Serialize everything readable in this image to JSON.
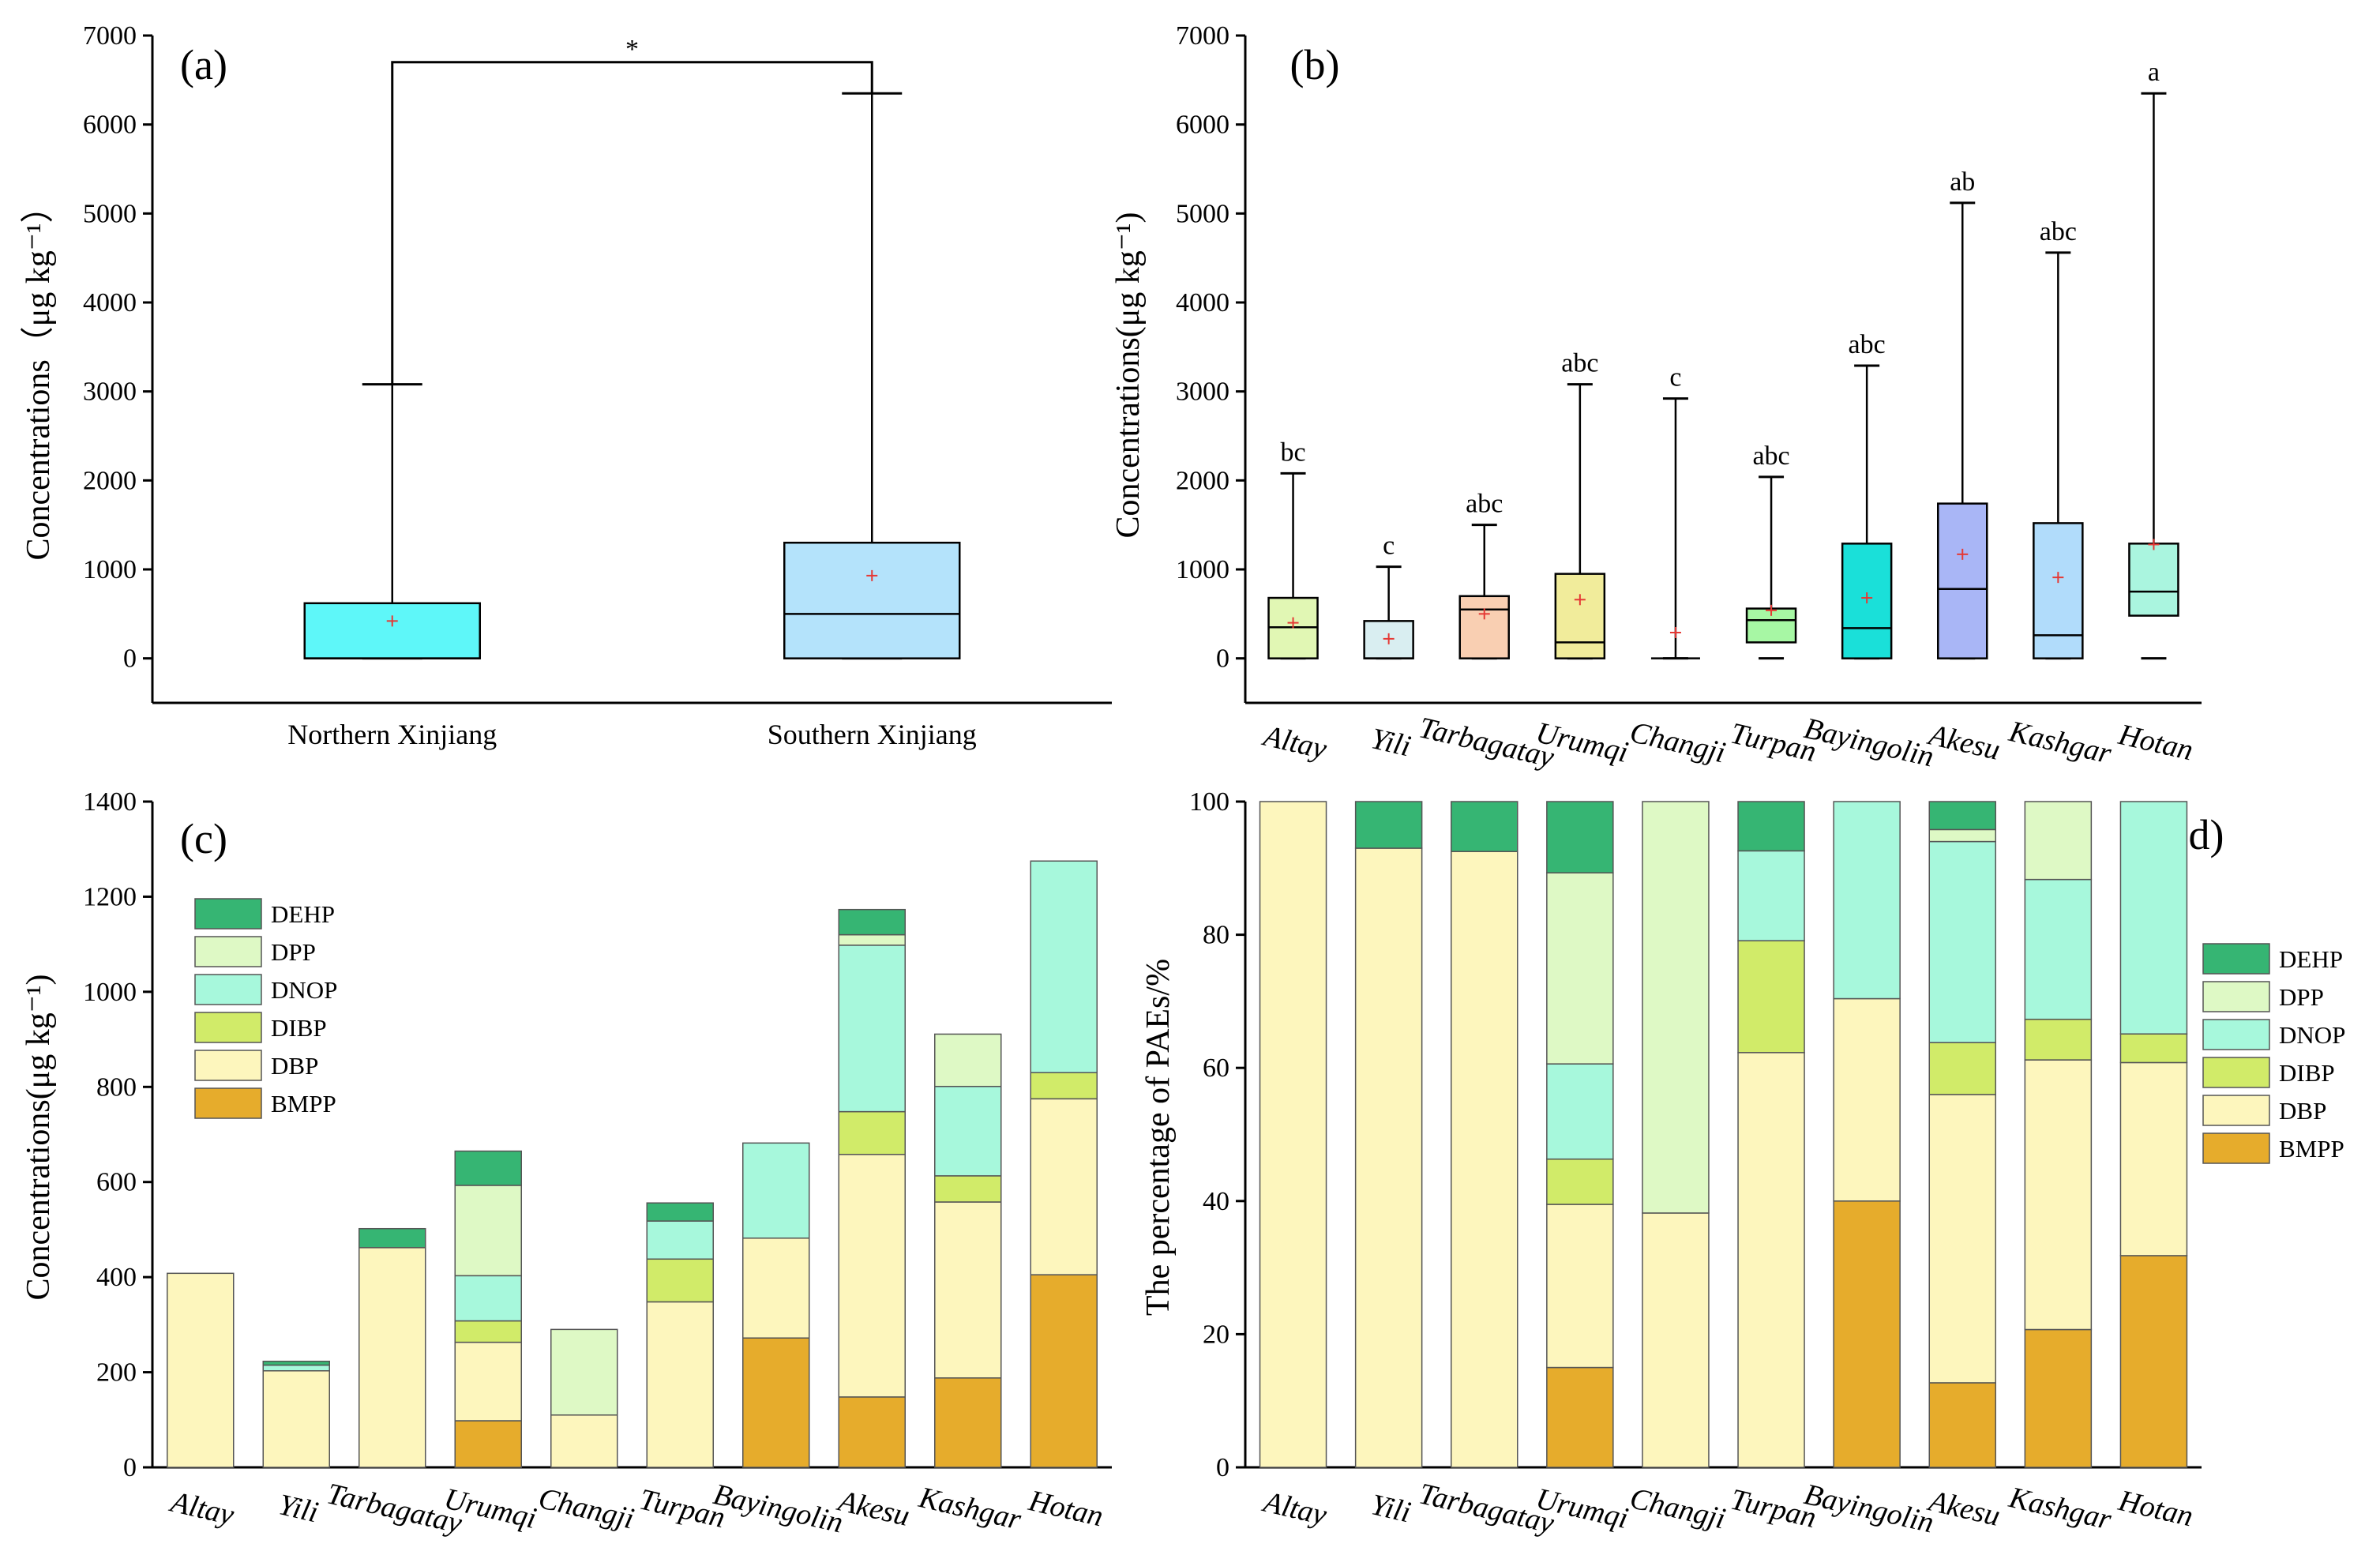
{
  "chart_data": [
    {
      "panel": "(a)",
      "type": "box",
      "ylabel": "Concentrations（μg kg⁻¹）",
      "ylim": [
        -500,
        7000
      ],
      "yticks": [
        0,
        1000,
        2000,
        3000,
        4000,
        5000,
        6000,
        7000
      ],
      "significance": "*",
      "categories": [
        "Northern Xinjiang",
        "Southern Xinjiang"
      ],
      "boxes": [
        {
          "min": 0,
          "q1": 0,
          "median": 0,
          "q3": 620,
          "max": 3080,
          "mean": 420,
          "color": "#5ef7f9"
        },
        {
          "min": 0,
          "q1": 0,
          "median": 500,
          "q3": 1300,
          "max": 6350,
          "mean": 930,
          "color": "#b4e3fb"
        }
      ]
    },
    {
      "panel": "(b)",
      "type": "box",
      "ylabel": "Concentrations(μg kg⁻¹)",
      "ylim": [
        -500,
        7000
      ],
      "yticks": [
        0,
        1000,
        2000,
        3000,
        4000,
        5000,
        6000,
        7000
      ],
      "categories": [
        "Altay",
        "Yili",
        "Tarbagatay",
        "Urumqi",
        "Changji",
        "Turpan",
        "Bayingolin",
        "Akesu",
        "Kashgar",
        "Hotan"
      ],
      "letters": [
        "bc",
        "c",
        "abc",
        "abc",
        "c",
        "abc",
        "abc",
        "ab",
        "abc",
        "a"
      ],
      "boxes": [
        {
          "min": 0,
          "q1": 0,
          "median": 350,
          "q3": 680,
          "max": 2080,
          "mean": 400,
          "color": "#e1f7b4"
        },
        {
          "min": 0,
          "q1": 0,
          "median": 0,
          "q3": 420,
          "max": 1030,
          "mean": 220,
          "color": "#d9eef1"
        },
        {
          "min": 0,
          "q1": 0,
          "median": 550,
          "q3": 700,
          "max": 1500,
          "mean": 500,
          "color": "#f9cfb2"
        },
        {
          "min": 0,
          "q1": 0,
          "median": 180,
          "q3": 950,
          "max": 3080,
          "mean": 660,
          "color": "#f1ec9b"
        },
        {
          "min": 0,
          "q1": 0,
          "median": 0,
          "q3": 0,
          "max": 2920,
          "mean": 290,
          "color": "#ffffff"
        },
        {
          "min": 0,
          "q1": 180,
          "median": 430,
          "q3": 560,
          "max": 2040,
          "mean": 540,
          "color": "#a7f7a4"
        },
        {
          "min": 0,
          "q1": 0,
          "median": 340,
          "q3": 1290,
          "max": 3290,
          "mean": 680,
          "color": "#1ae0d9"
        },
        {
          "min": 0,
          "q1": 0,
          "median": 780,
          "q3": 1740,
          "max": 5120,
          "mean": 1170,
          "color": "#a9b6f6"
        },
        {
          "min": 0,
          "q1": 0,
          "median": 260,
          "q3": 1520,
          "max": 4560,
          "mean": 910,
          "color": "#b1dcfb"
        },
        {
          "min": 0,
          "q1": 480,
          "median": 750,
          "q3": 1290,
          "max": 6350,
          "mean": 1280,
          "color": "#aaf5df"
        }
      ]
    },
    {
      "panel": "(c)",
      "type": "stacked_bar",
      "ylabel": "Concentrations(μg kg⁻¹)",
      "ylim": [
        0,
        1400
      ],
      "yticks": [
        0,
        200,
        400,
        600,
        800,
        1000,
        1200,
        1400
      ],
      "categories": [
        "Altay",
        "Yili",
        "Tarbagatay",
        "Urumqi",
        "Changji",
        "Turpan",
        "Bayingolin",
        "Akesu",
        "Kashgar",
        "Hotan"
      ],
      "legend": [
        "DEHP",
        "DPP",
        "DNOP",
        "DIBP",
        "DBP",
        "BMPP"
      ],
      "series": [
        {
          "name": "BMPP",
          "color": "#e6ac2c",
          "values": [
            0,
            0,
            0,
            98,
            0,
            0,
            272,
            148,
            188,
            405
          ]
        },
        {
          "name": "DBP",
          "color": "#fdf6bd",
          "values": [
            408,
            203,
            462,
            165,
            110,
            348,
            210,
            510,
            370,
            370
          ]
        },
        {
          "name": "DIBP",
          "color": "#d1eb69",
          "values": [
            0,
            0,
            0,
            45,
            0,
            90,
            0,
            90,
            55,
            55
          ]
        },
        {
          "name": "DNOP",
          "color": "#a7f8dc",
          "values": [
            0,
            12,
            0,
            95,
            0,
            80,
            200,
            350,
            188,
            445
          ]
        },
        {
          "name": "DPP",
          "color": "#def9c5",
          "values": [
            0,
            0,
            0,
            190,
            180,
            0,
            0,
            22,
            110,
            0
          ]
        },
        {
          "name": "DEHP",
          "color": "#36b573",
          "values": [
            0,
            8,
            40,
            72,
            0,
            38,
            0,
            53,
            0,
            0
          ]
        }
      ]
    },
    {
      "panel": "(d)",
      "type": "stacked_bar",
      "ylabel": "The percentage of  PAEs/%",
      "ylim": [
        0,
        100
      ],
      "yticks": [
        0,
        20,
        40,
        60,
        80,
        100
      ],
      "categories": [
        "Altay",
        "Yili",
        "Tarbagatay",
        "Urumqi",
        "Changji",
        "Turpan",
        "Bayingolin",
        "Akesu",
        "Kashgar",
        "Hotan"
      ],
      "legend": [
        "DEHP",
        "DPP",
        "DNOP",
        "DIBP",
        "DBP",
        "BMPP"
      ],
      "series": [
        {
          "name": "BMPP",
          "color": "#e6ac2c",
          "values": [
            0,
            0,
            0,
            15,
            0,
            0,
            40,
            12.7,
            20.7,
            31.8
          ]
        },
        {
          "name": "DBP",
          "color": "#fdf6bd",
          "values": [
            100,
            93,
            92.5,
            24.5,
            38.2,
            62.3,
            30.4,
            43.3,
            40.5,
            29
          ]
        },
        {
          "name": "DIBP",
          "color": "#d1eb69",
          "values": [
            0,
            0,
            0,
            6.8,
            0,
            16.8,
            0,
            7.8,
            6.1,
            4.3
          ]
        },
        {
          "name": "DNOP",
          "color": "#a7f8dc",
          "values": [
            0,
            0,
            0,
            14.3,
            0,
            13.5,
            29.6,
            30.2,
            21,
            34.9
          ]
        },
        {
          "name": "DPP",
          "color": "#def9c5",
          "values": [
            0,
            0,
            0,
            28.7,
            61.8,
            0,
            0,
            1.8,
            11.7,
            0
          ]
        },
        {
          "name": "DEHP",
          "color": "#36b573",
          "values": [
            0,
            7,
            7.5,
            10.7,
            0,
            7.4,
            0,
            4.2,
            0,
            0
          ]
        }
      ]
    }
  ]
}
